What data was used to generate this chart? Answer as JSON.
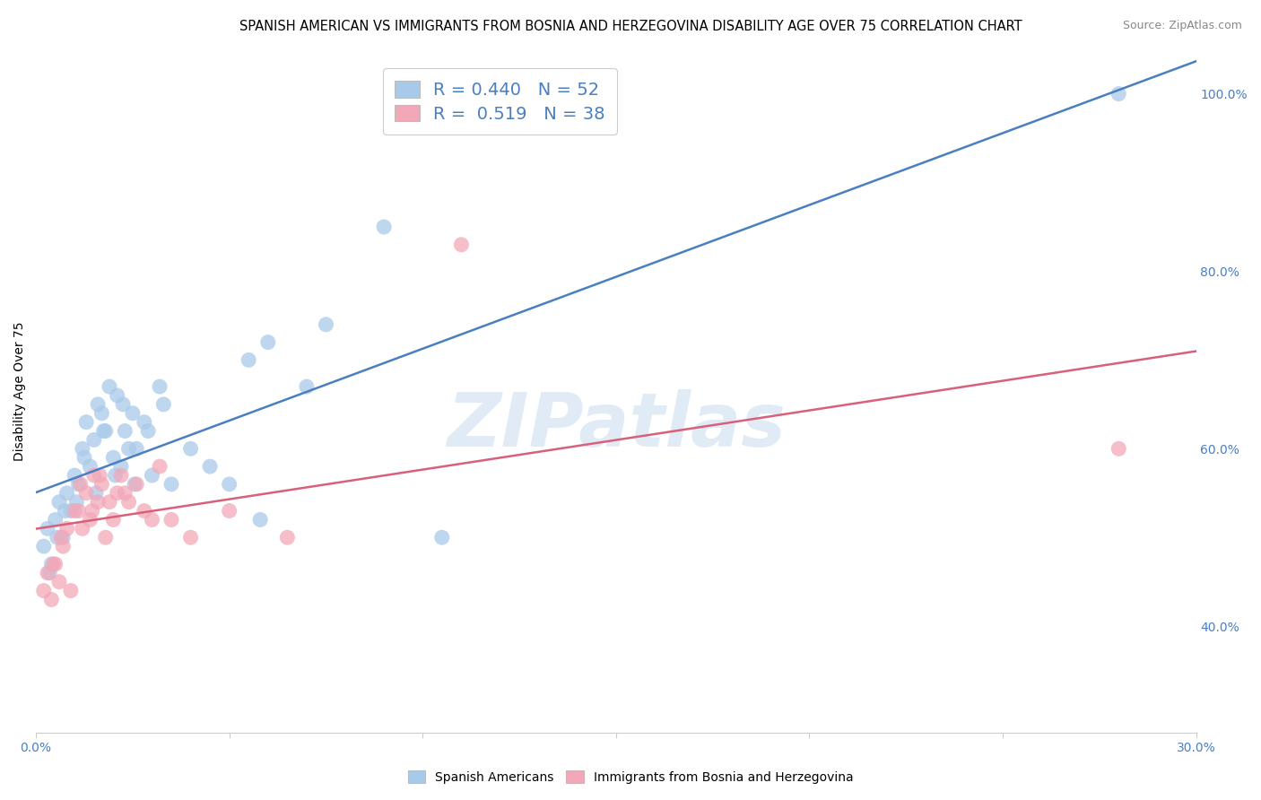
{
  "title": "SPANISH AMERICAN VS IMMIGRANTS FROM BOSNIA AND HERZEGOVINA DISABILITY AGE OVER 75 CORRELATION CHART",
  "source": "Source: ZipAtlas.com",
  "ylabel": "Disability Age Over 75",
  "xlim": [
    0.0,
    30.0
  ],
  "ylim": [
    28.0,
    105.0
  ],
  "yticks_right": [
    40.0,
    60.0,
    80.0,
    100.0
  ],
  "blue_R": 0.44,
  "blue_N": 52,
  "pink_R": 0.519,
  "pink_N": 38,
  "blue_color": "#A8CAEA",
  "pink_color": "#F2A8B8",
  "blue_line_color": "#4A7FC1",
  "pink_line_color": "#D9607A",
  "legend_text_color": "#4A7FC1",
  "watermark": "ZIPatlas",
  "watermark_blue": "#C5D8EE",
  "watermark_pink": "#E8B8C8",
  "title_fontsize": 10.5,
  "source_fontsize": 9,
  "blue_x": [
    0.2,
    0.3,
    0.4,
    0.5,
    0.6,
    0.7,
    0.8,
    0.9,
    1.0,
    1.1,
    1.2,
    1.3,
    1.4,
    1.5,
    1.6,
    1.7,
    1.8,
    1.9,
    2.0,
    2.1,
    2.2,
    2.3,
    2.4,
    2.5,
    2.6,
    2.8,
    3.0,
    3.2,
    3.5,
    4.0,
    4.5,
    5.0,
    5.5,
    6.0,
    7.0,
    7.5,
    0.35,
    0.55,
    0.75,
    1.05,
    1.25,
    1.55,
    1.75,
    2.05,
    2.25,
    2.55,
    2.9,
    3.3,
    5.8,
    9.0,
    28.0,
    10.5
  ],
  "blue_y": [
    49,
    51,
    47,
    52,
    54,
    50,
    55,
    53,
    57,
    56,
    60,
    63,
    58,
    61,
    65,
    64,
    62,
    67,
    59,
    66,
    58,
    62,
    60,
    64,
    60,
    63,
    57,
    67,
    56,
    60,
    58,
    56,
    70,
    72,
    67,
    74,
    46,
    50,
    53,
    54,
    59,
    55,
    62,
    57,
    65,
    56,
    62,
    65,
    52,
    85,
    100,
    50
  ],
  "pink_x": [
    0.2,
    0.3,
    0.4,
    0.5,
    0.6,
    0.7,
    0.8,
    0.9,
    1.0,
    1.1,
    1.2,
    1.3,
    1.4,
    1.5,
    1.6,
    1.7,
    1.8,
    1.9,
    2.0,
    2.1,
    2.2,
    2.4,
    2.6,
    2.8,
    3.0,
    3.5,
    4.0,
    5.0,
    6.5,
    0.45,
    0.65,
    1.15,
    1.45,
    1.65,
    2.3,
    3.2,
    28.0,
    11.0
  ],
  "pink_y": [
    44,
    46,
    43,
    47,
    45,
    49,
    51,
    44,
    53,
    53,
    51,
    55,
    52,
    57,
    54,
    56,
    50,
    54,
    52,
    55,
    57,
    54,
    56,
    53,
    52,
    52,
    50,
    53,
    50,
    47,
    50,
    56,
    53,
    57,
    55,
    58,
    60,
    83
  ]
}
